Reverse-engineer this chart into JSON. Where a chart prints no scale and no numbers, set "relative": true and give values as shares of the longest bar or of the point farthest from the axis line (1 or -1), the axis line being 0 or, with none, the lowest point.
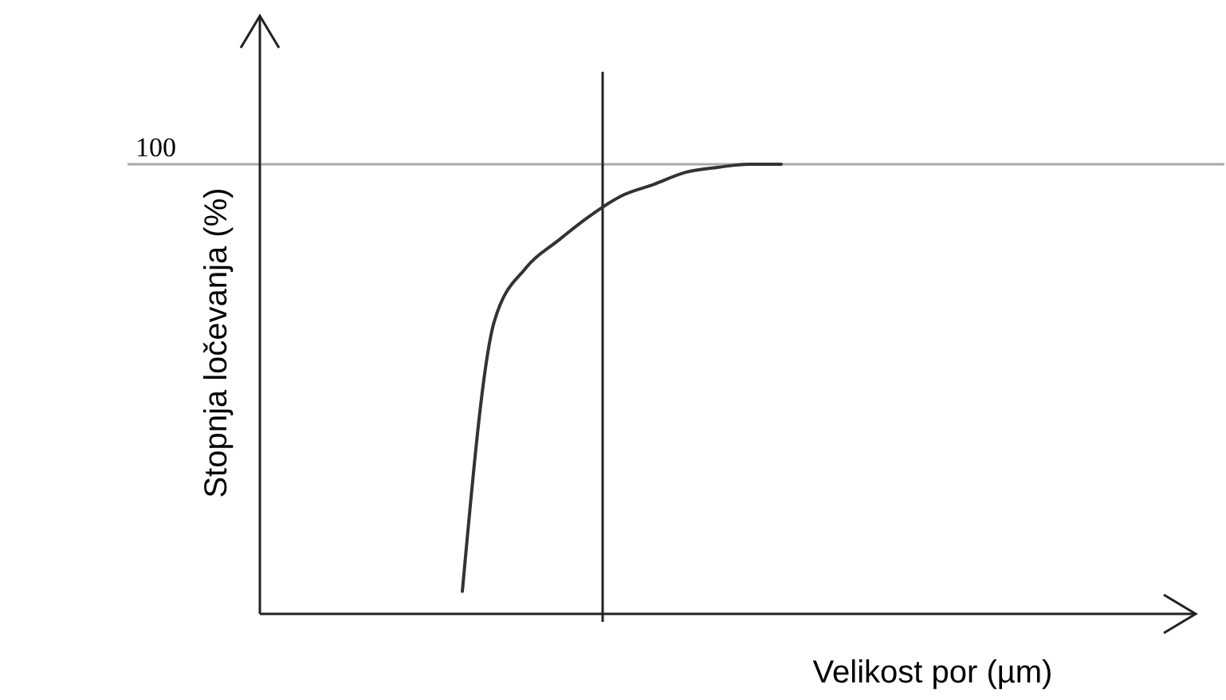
{
  "chart_data": {
    "type": "line",
    "relative": true,
    "xlabel": "Velikost por (µm)",
    "ylabel": "Stopnja ločevanja (%)",
    "categories": [
      null,
      null,
      null,
      null,
      null,
      null,
      null,
      null,
      null,
      null,
      null,
      null,
      null,
      null,
      null,
      null,
      null,
      null,
      null,
      null,
      null,
      null,
      null,
      null,
      null,
      null,
      null,
      null,
      null,
      null,
      null
    ],
    "series": [
      {
        "color": "#333333",
        "values": [
          null,
          null,
          null,
          null,
          null,
          null,
          0.05,
          0.65,
          0.77,
          0.83,
          0.885,
          0.93,
          0.955,
          0.982,
          0.993,
          1,
          1,
          null,
          null,
          null,
          null,
          null,
          null,
          null,
          null,
          null,
          null,
          null,
          null,
          null,
          null
        ]
      }
    ],
    "ref_lines": [
      {
        "axis": "y",
        "value": 1,
        "label": "100",
        "color": "#aaaaaa"
      }
    ]
  }
}
